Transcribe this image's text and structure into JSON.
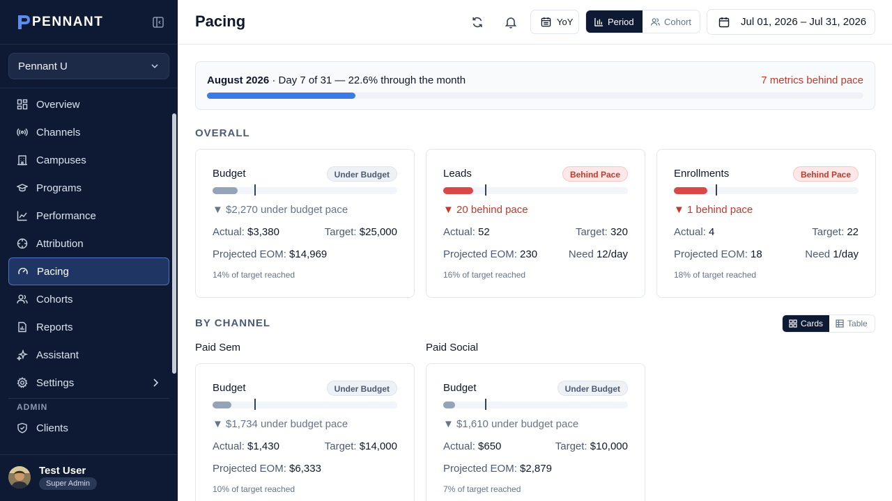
{
  "brand": {
    "name": "PENNANT"
  },
  "org_select": {
    "value": "Pennant U"
  },
  "nav": [
    {
      "label": "Overview",
      "icon": "grid-icon",
      "active": false
    },
    {
      "label": "Channels",
      "icon": "broadcast-icon",
      "active": false
    },
    {
      "label": "Campuses",
      "icon": "building-icon",
      "active": false
    },
    {
      "label": "Programs",
      "icon": "graduation-cap-icon",
      "active": false
    },
    {
      "label": "Performance",
      "icon": "line-chart-icon",
      "active": false
    },
    {
      "label": "Attribution",
      "icon": "crosshair-icon",
      "active": false
    },
    {
      "label": "Pacing",
      "icon": "gauge-icon",
      "active": true
    },
    {
      "label": "Cohorts",
      "icon": "users-icon",
      "active": false
    },
    {
      "label": "Reports",
      "icon": "file-chart-icon",
      "active": false
    },
    {
      "label": "Assistant",
      "icon": "sparkles-icon",
      "active": false
    },
    {
      "label": "Settings",
      "icon": "gear-icon",
      "active": false
    }
  ],
  "admin": {
    "label": "ADMIN",
    "clients_label": "Clients"
  },
  "user": {
    "name": "Test User",
    "role": "Super Admin"
  },
  "topbar": {
    "title": "Pacing",
    "yoy_label": "YoY",
    "period_label": "Period",
    "cohort_label": "Cohort",
    "date_range": "Jul 01, 2026 – Jul 31, 2026"
  },
  "month_progress": {
    "month": "August 2026",
    "detail": " · Day 7 of 31 — 22.6% through the month",
    "warning": "7 metrics behind pace",
    "fraction": 0.226
  },
  "sections": {
    "overall": "OVERALL",
    "by_channel": "BY CHANNEL"
  },
  "view_toggle": {
    "cards": "Cards",
    "table": "Table"
  },
  "overall_cards": [
    {
      "title": "Budget",
      "badge": "Under Budget",
      "badge_type": "under",
      "pace": "▼ $2,270 under budget pace",
      "pace_type": "gray",
      "row1_left_label": "Actual:",
      "row1_left_value": "$3,380",
      "row1_right_label": "Target:",
      "row1_right_value": "$25,000",
      "row2_left_label": "Projected EOM:",
      "row2_left_value": "$14,969",
      "row2_right_label": "",
      "row2_right_value": "",
      "foot": "14% of target reached",
      "fill_fraction": 0.135,
      "pace_fraction": 0.226,
      "fill_color": "#94a3b8"
    },
    {
      "title": "Leads",
      "badge": "Behind Pace",
      "badge_type": "behind",
      "pace": "▼ 20 behind pace",
      "pace_type": "red",
      "row1_left_label": "Actual:",
      "row1_left_value": "52",
      "row1_right_label": "Target:",
      "row1_right_value": "320",
      "row2_left_label": "Projected EOM:",
      "row2_left_value": "230",
      "row2_right_label": "Need",
      "row2_right_value": "12/day",
      "foot": "16% of target reached",
      "fill_fraction": 0.163,
      "pace_fraction": 0.226,
      "fill_color": "#d94848"
    },
    {
      "title": "Enrollments",
      "badge": "Behind Pace",
      "badge_type": "behind",
      "pace": "▼ 1 behind pace",
      "pace_type": "red",
      "row1_left_label": "Actual:",
      "row1_left_value": "4",
      "row1_right_label": "Target:",
      "row1_right_value": "22",
      "row2_left_label": "Projected EOM:",
      "row2_left_value": "18",
      "row2_right_label": "Need",
      "row2_right_value": "1/day",
      "foot": "18% of target reached",
      "fill_fraction": 0.18,
      "pace_fraction": 0.226,
      "fill_color": "#d94848"
    }
  ],
  "channels": [
    {
      "name": "Paid Sem",
      "card": {
        "title": "Budget",
        "badge": "Under Budget",
        "badge_type": "under",
        "pace": "▼ $1,734 under budget pace",
        "pace_type": "gray",
        "row1_left_label": "Actual:",
        "row1_left_value": "$1,430",
        "row1_right_label": "Target:",
        "row1_right_value": "$14,000",
        "row2_left_label": "Projected EOM:",
        "row2_left_value": "$6,333",
        "row2_right_label": "",
        "row2_right_value": "",
        "foot": "10% of target reached",
        "fill_fraction": 0.102,
        "pace_fraction": 0.226,
        "fill_color": "#94a3b8"
      }
    },
    {
      "name": "Paid Social",
      "card": {
        "title": "Budget",
        "badge": "Under Budget",
        "badge_type": "under",
        "pace": "▼ $1,610 under budget pace",
        "pace_type": "gray",
        "row1_left_label": "Actual:",
        "row1_left_value": "$650",
        "row1_right_label": "Target:",
        "row1_right_value": "$10,000",
        "row2_left_label": "Projected EOM:",
        "row2_left_value": "$2,879",
        "row2_right_label": "",
        "row2_right_value": "",
        "foot": "7% of target reached",
        "fill_fraction": 0.065,
        "pace_fraction": 0.226,
        "fill_color": "#94a3b8"
      }
    }
  ],
  "colors": {
    "sidebar_bg": "#0e1a33",
    "accent": "#3b7be8",
    "danger": "#c0392b",
    "active_nav": "#1f3563"
  }
}
